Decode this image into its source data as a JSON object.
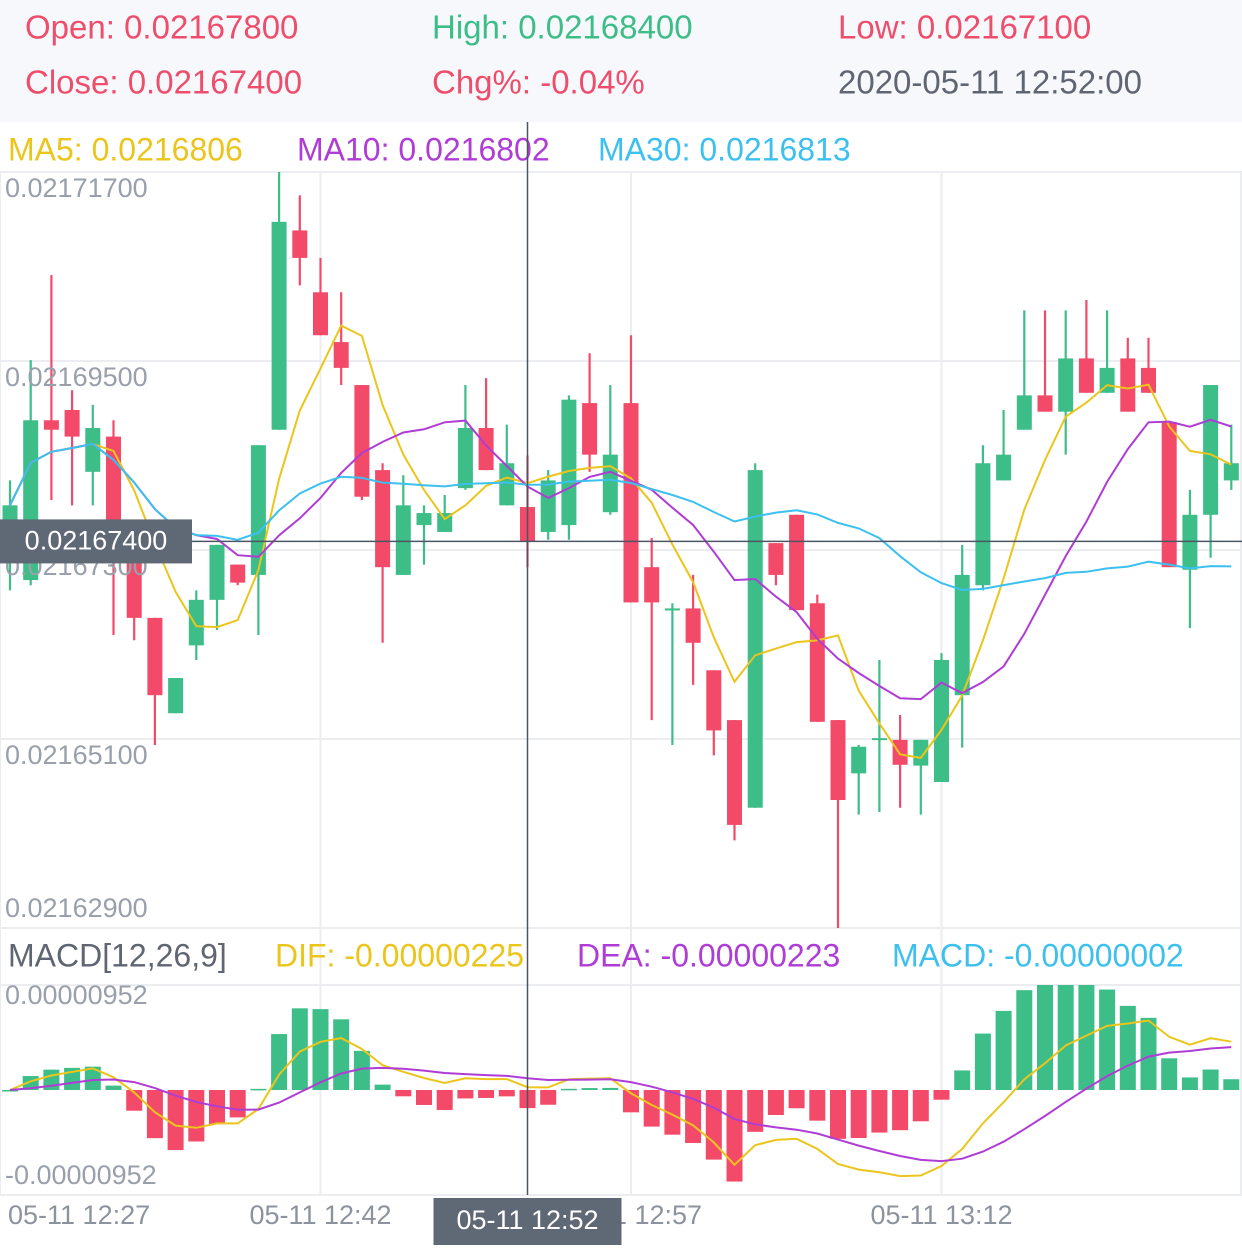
{
  "chart_data": {
    "type": "candlestick",
    "tooltip": [
      {
        "text": "Open: 0.02167800",
        "color": "#ee4d6b"
      },
      {
        "text": "High: 0.02168400",
        "color": "#3dbd88"
      },
      {
        "text": "Low: 0.02167100",
        "color": "#ee4d6b"
      },
      {
        "text": "Close: 0.02167400",
        "color": "#ee4d6b"
      },
      {
        "text": "Chg%: -0.04%",
        "color": "#ee4d6b"
      },
      {
        "text": "2020-05-11 12:52:00",
        "color": "#5f6672"
      }
    ],
    "ma": [
      {
        "period": 5,
        "color": "#ebc51c",
        "legend": "MA5: 0.0216806"
      },
      {
        "period": 10,
        "color": "#b03cd6",
        "legend": "MA10: 0.0216802"
      },
      {
        "period": 30,
        "color": "#3cc0ef",
        "legend": "MA30: 0.0216813"
      }
    ],
    "up_color": "#3dbd88",
    "down_color": "#f24a68",
    "categories": [
      "05-11 12:27",
      null,
      null,
      null,
      null,
      null,
      null,
      null,
      null,
      null,
      null,
      null,
      null,
      null,
      null,
      "05-11 12:42",
      null,
      null,
      null,
      null,
      null,
      null,
      null,
      null,
      null,
      "05-11 12:52",
      null,
      null,
      null,
      null,
      "05-11 12:57",
      null,
      null,
      null,
      null,
      null,
      null,
      null,
      null,
      null,
      null,
      null,
      null,
      null,
      null,
      "05-11 13:12",
      null,
      null,
      null,
      null,
      null,
      null,
      null,
      null,
      null,
      null,
      null,
      null,
      null,
      null
    ],
    "open": [
      0.0216736,
      0.0216695,
      0.0216881,
      0.0216893,
      0.0216821,
      0.0216862,
      0.0216742,
      0.0216651,
      0.021654,
      0.0216619,
      0.0216672,
      0.0216713,
      0.0216701,
      0.021687,
      0.0217102,
      0.021703,
      0.0216972,
      0.0216922,
      0.0216823,
      0.0216701,
      0.0216759,
      0.0216751,
      0.0216802,
      0.0216872,
      0.0216782,
      0.021678,
      0.0216751,
      0.0216759,
      0.0216901,
      0.0216774,
      0.0216901,
      0.021671,
      0.021666,
      0.0216662,
      0.021659,
      0.0216532,
      0.021643,
      0.0216738,
      0.0216771,
      0.0216668,
      0.0216532,
      0.021647,
      0.0216509,
      0.0216509,
      0.0216479,
      0.021646,
      0.0216561,
      0.0216689,
      0.0216811,
      0.021687,
      0.021691,
      0.0216891,
      0.0216953,
      0.0216913,
      0.0216953,
      0.0216942,
      0.0216879,
      0.0216707,
      0.0216771,
      0.0216811
    ],
    "high": [
      0.0216811,
      0.0216951,
      0.021705,
      0.0216916,
      0.0216899,
      0.0216881,
      0.0216742,
      0.0216651,
      0.0216581,
      0.0216683,
      0.0216736,
      0.0216713,
      0.0216852,
      0.021717,
      0.0217143,
      0.021707,
      0.021703,
      0.0216922,
      0.0216831,
      0.0216817,
      0.0216782,
      0.0216794,
      0.0216922,
      0.021693,
      0.0216876,
      0.021684,
      0.0216823,
      0.021691,
      0.0216959,
      0.0216922,
      0.021698,
      0.0216744,
      0.0216668,
      0.0216701,
      0.021659,
      0.0216532,
      0.0216831,
      0.0216738,
      0.0216771,
      0.0216678,
      0.0216532,
      0.0216503,
      0.0216602,
      0.0216538,
      0.0216509,
      0.021661,
      0.0216736,
      0.0216852,
      0.0216893,
      0.0217009,
      0.0217009,
      0.0217009,
      0.0217021,
      0.0217009,
      0.0216977,
      0.0216977,
      0.0216879,
      0.02168,
      0.0216922,
      0.0216876
    ],
    "low": [
      0.0216683,
      0.0216689,
      0.0216788,
      0.0216782,
      0.0216782,
      0.0216631,
      0.0216625,
      0.0216503,
      0.021654,
      0.0216602,
      0.0216637,
      0.0216689,
      0.0216631,
      0.021687,
      0.0217038,
      0.021698,
      0.0216922,
      0.0216788,
      0.0216622,
      0.0216701,
      0.0216713,
      0.0216751,
      0.02168,
      0.0216823,
      0.0216782,
      0.021671,
      0.0216742,
      0.0216742,
      0.0216821,
      0.0216771,
      0.0216669,
      0.0216532,
      0.0216503,
      0.0216573,
      0.0216491,
      0.0216392,
      0.021643,
      0.0216689,
      0.021666,
      0.021653,
      0.021629,
      0.0216422,
      0.0216425,
      0.021643,
      0.0216422,
      0.021646,
      0.02165,
      0.0216683,
      0.0216811,
      0.021687,
      0.0216891,
      0.0216841,
      0.0216913,
      0.0216913,
      0.0216891,
      0.0216913,
      0.021671,
      0.0216639,
      0.0216721,
      0.02168
    ],
    "close": [
      0.0216782,
      0.0216881,
      0.021687,
      0.0216862,
      0.0216872,
      0.0216742,
      0.0216651,
      0.0216561,
      0.0216581,
      0.0216672,
      0.0216736,
      0.0216692,
      0.0216852,
      0.0217112,
      0.021707,
      0.021698,
      0.0216942,
      0.0216792,
      0.021671,
      0.0216782,
      0.0216773,
      0.0216773,
      0.0216872,
      0.0216823,
      0.0216831,
      0.021674,
      0.0216811,
      0.0216905,
      0.0216841,
      0.0216841,
      0.0216669,
      0.0216669,
      0.0216662,
      0.0216622,
      0.021652,
      0.021641,
      0.0216823,
      0.0216701,
      0.021666,
      0.021653,
      0.0216439,
      0.0216501,
      0.0216511,
      0.021648,
      0.0216509,
      0.0216602,
      0.0216701,
      0.0216831,
      0.0216841,
      0.021691,
      0.0216891,
      0.0216953,
      0.0216913,
      0.0216942,
      0.0216891,
      0.0216913,
      0.021671,
      0.0216771,
      0.0216922,
      0.0216831
    ],
    "ylim": [
      0.021629,
      0.021717
    ],
    "yticks": [
      {
        "value": 0.021717,
        "label": "0.02171700"
      },
      {
        "value": 0.021695,
        "label": "0.02169500"
      },
      {
        "value": 0.021673,
        "label": "0.02167300"
      },
      {
        "value": 0.021651,
        "label": "0.02165100"
      },
      {
        "value": 0.021629,
        "label": "0.02162900"
      }
    ],
    "grid": true,
    "crosshair": {
      "index": 25,
      "price": 0.021674,
      "price_label": "0.02167400"
    },
    "macd": {
      "title": "MACD[12,26,9]",
      "params": [
        12,
        26,
        9
      ],
      "legend": [
        {
          "text": "DIF: -0.00000225",
          "color": "#ebc51c"
        },
        {
          "text": "DEA: -0.00000223",
          "color": "#b03cd6"
        },
        {
          "text": "MACD: -0.00000002",
          "color": "#3cc0ef"
        }
      ],
      "ylim": [
        -9.52e-06,
        9.52e-06
      ],
      "yticks": [
        {
          "value": 9.52e-06,
          "label": "0.00000952"
        },
        {
          "value": -9.52e-06,
          "label": "-0.00000952"
        }
      ]
    }
  }
}
